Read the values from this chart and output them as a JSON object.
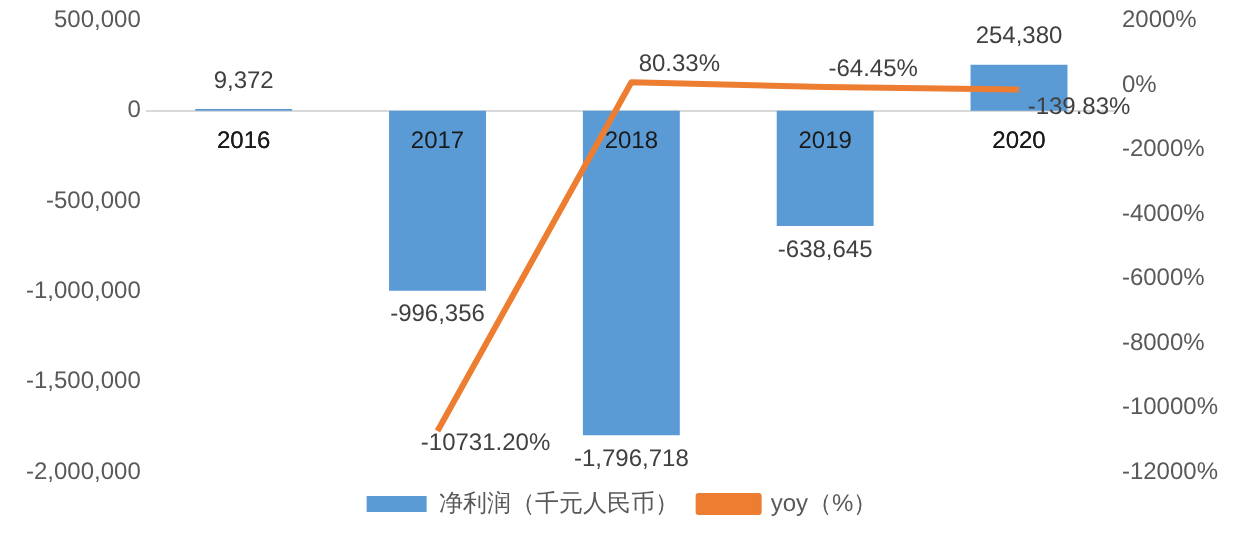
{
  "chart_data": {
    "type": "bar",
    "categories": [
      "2016",
      "2017",
      "2018",
      "2019",
      "2020"
    ],
    "series": [
      {
        "name": "净利润（千元人民币）",
        "color": "#5b9bd5",
        "values": [
          9372,
          -996356,
          -1796718,
          -638645,
          254380
        ],
        "value_labels": [
          "9,372",
          "-996,356",
          "-1,796,718",
          "-638,645",
          "254,380"
        ]
      },
      {
        "name": "yoy（%）",
        "type": "line",
        "axis": "y2",
        "color": "#ed7d31",
        "values": [
          null,
          -10731.2,
          80.33,
          -64.45,
          -139.83
        ],
        "value_labels": [
          null,
          "-10731.20%",
          "80.33%",
          "-64.45%",
          "-139.83%"
        ]
      }
    ],
    "ylim": [
      -2000000,
      500000
    ],
    "yticks": [
      {
        "value": -2000000,
        "label": "-2,000,000"
      },
      {
        "value": -1500000,
        "label": "-1,500,000"
      },
      {
        "value": -1000000,
        "label": "-1,000,000"
      },
      {
        "value": -500000,
        "label": "-500,000"
      },
      0,
      {
        "value": 500000,
        "label": "500,000"
      }
    ],
    "y2lim": [
      -12000,
      2000
    ],
    "y2ticks": [
      {
        "value": -12000,
        "label": "-12000%"
      },
      {
        "value": -10000,
        "label": "-10000%"
      },
      {
        "value": -8000,
        "label": "-8000%"
      },
      {
        "value": -6000,
        "label": "-6000%"
      },
      {
        "value": -4000,
        "label": "-4000%"
      },
      {
        "value": -2000,
        "label": "-2000%"
      },
      {
        "value": 0,
        "label": "0%"
      },
      {
        "value": 2000,
        "label": "2000%"
      }
    ],
    "legend": "bottom",
    "grid": false,
    "marker": "none"
  }
}
